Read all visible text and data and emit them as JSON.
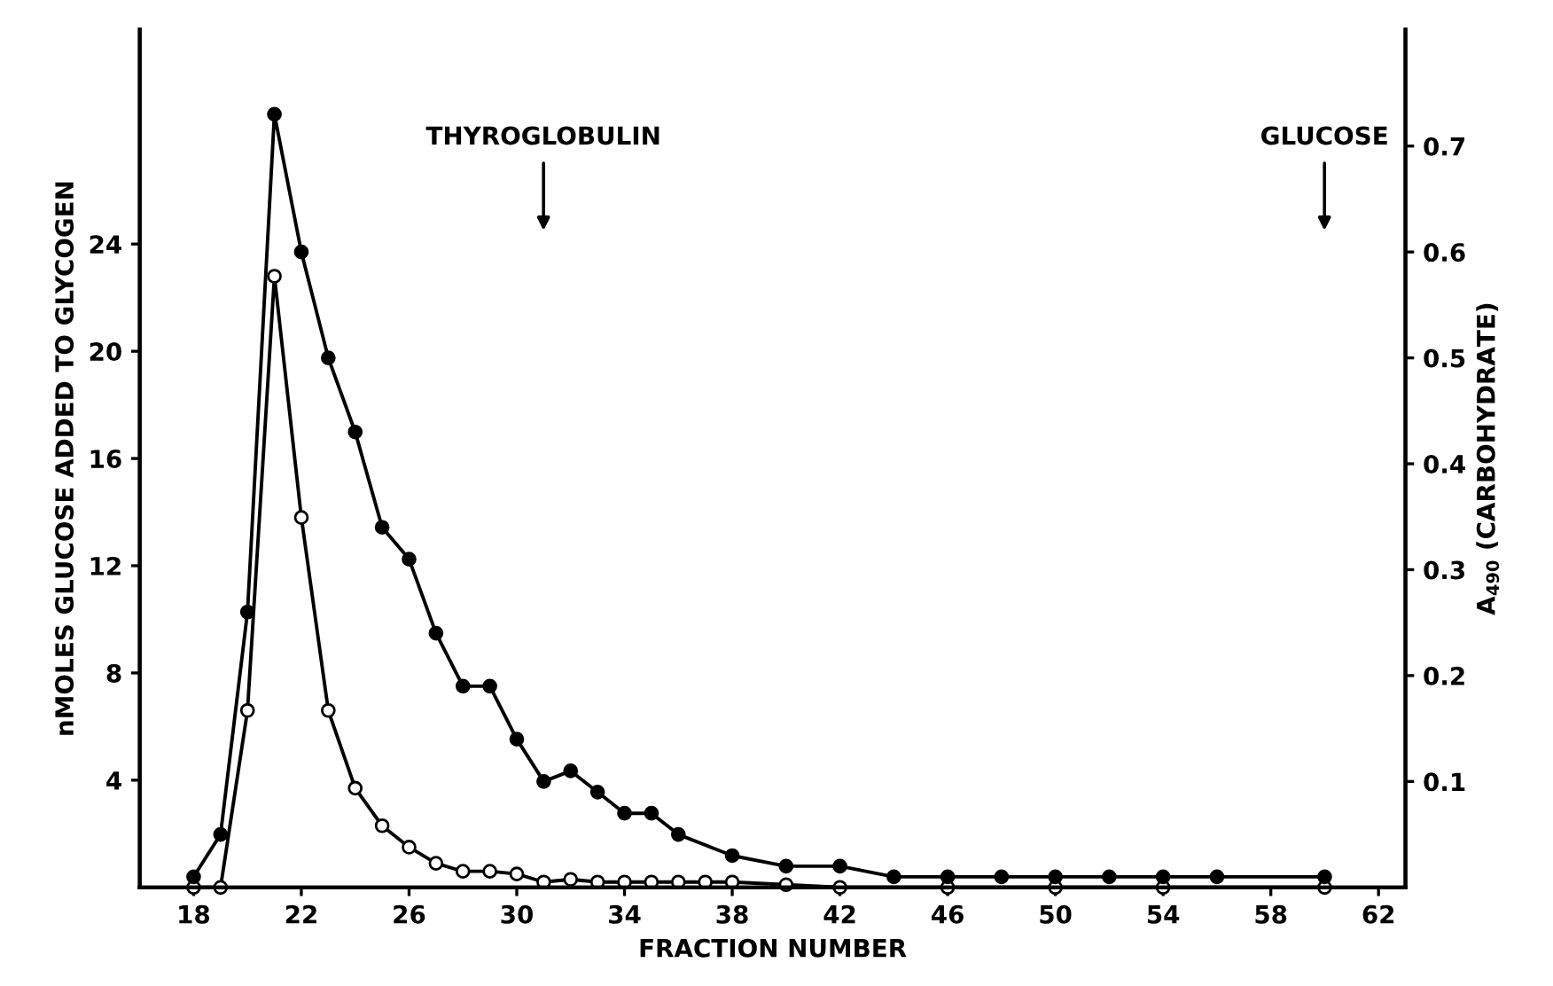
{
  "chart_data": {
    "type": "line",
    "xlabel": "FRACTION NUMBER",
    "ylabel": "nMOLES GLUCOSE ADDED TO GLYCOGEN",
    "y2label": "A$_{490}$ (CARBOHYDRATE)",
    "xlim": [
      16,
      63
    ],
    "xticks": [
      18,
      22,
      26,
      30,
      34,
      38,
      42,
      46,
      50,
      54,
      58,
      62
    ],
    "ylim": [
      0,
      32
    ],
    "yticks": [
      4,
      8,
      12,
      16,
      20,
      24
    ],
    "y2lim": [
      0,
      0.81
    ],
    "y2ticks": [
      0.1,
      0.2,
      0.3,
      0.4,
      0.5,
      0.6,
      0.7
    ],
    "marker": "circle",
    "line_style": "solid",
    "grid": false,
    "legend": false,
    "annotations": [
      "THYROGLOBULIN",
      "GLUCOSE"
    ],
    "series": [
      {
        "color": "#000000",
        "x": [
          18,
          19,
          20,
          21,
          22,
          23,
          24,
          25,
          26,
          27,
          28,
          29,
          30,
          31,
          32,
          33,
          34,
          35,
          36,
          37,
          38,
          40,
          42,
          46,
          50,
          54,
          60
        ],
        "values": [
          0,
          0,
          6.6,
          22.8,
          13.8,
          6.6,
          3.7,
          2.3,
          1.5,
          0.9,
          0.6,
          0.6,
          0.5,
          0.2,
          0.3,
          0.2,
          0.2,
          0.2,
          0.2,
          0.2,
          0.2,
          0.1,
          0,
          0,
          0,
          0,
          0
        ]
      },
      {
        "color": "#000000",
        "axis": "y2",
        "x": [
          18,
          19,
          20,
          21,
          22,
          23,
          24,
          25,
          26,
          27,
          28,
          29,
          30,
          31,
          32,
          33,
          34,
          35,
          36,
          38,
          40,
          42,
          44,
          46,
          48,
          50,
          52,
          54,
          56,
          60
        ],
        "values": [
          0.01,
          0.05,
          0.26,
          0.73,
          0.6,
          0.5,
          0.43,
          0.34,
          0.31,
          0.24,
          0.19,
          0.19,
          0.14,
          0.1,
          0.11,
          0.09,
          0.07,
          0.07,
          0.05,
          0.03,
          0.02,
          0.02,
          0.01,
          0.01,
          0.01,
          0.01,
          0.01,
          0.01,
          0.01,
          0.01
        ]
      }
    ]
  }
}
